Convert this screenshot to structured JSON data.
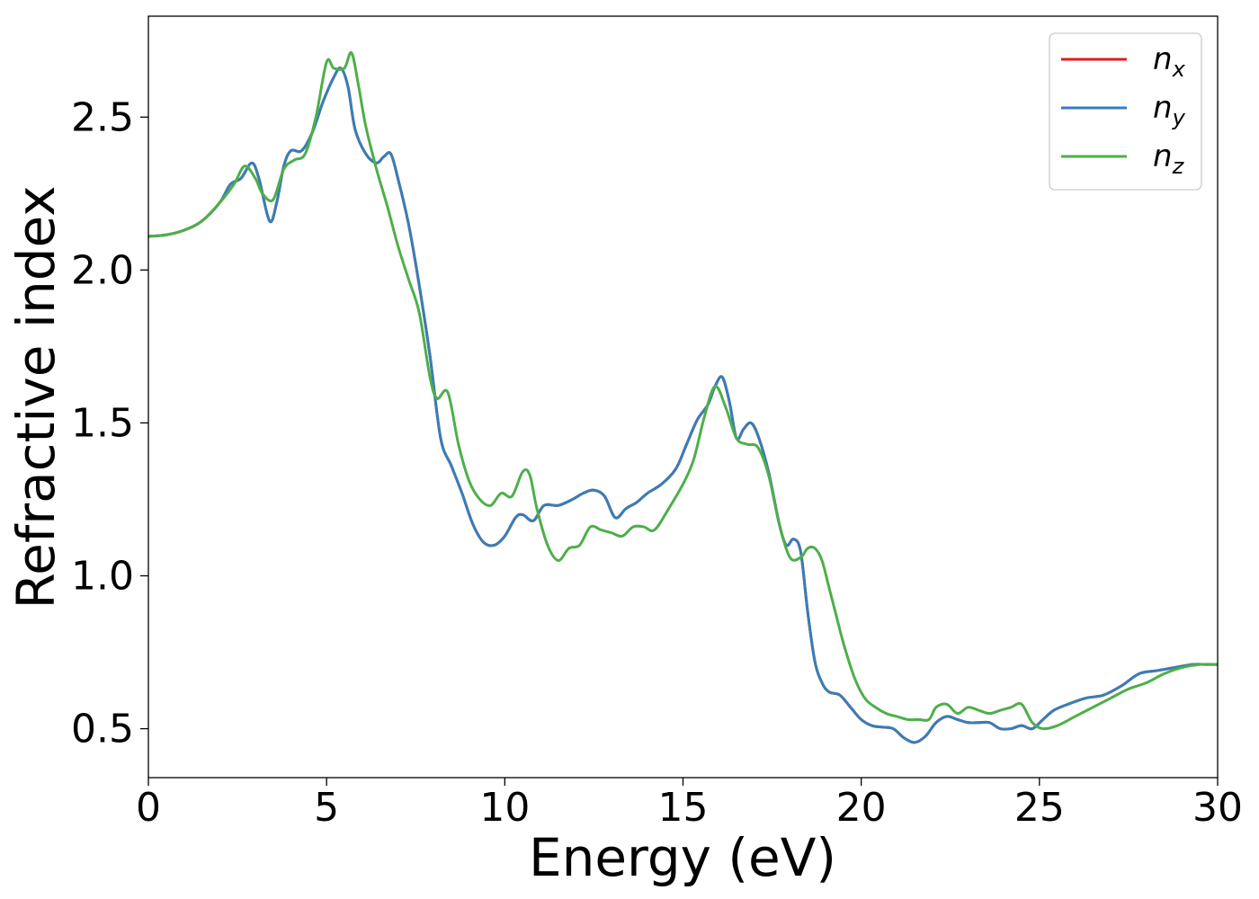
{
  "chart_data": {
    "type": "line",
    "title": "",
    "xlabel": "Energy (eV)",
    "ylabel": "Refractive index",
    "xlim": [
      0,
      30
    ],
    "ylim": [
      0.34,
      2.83
    ],
    "xticks": [
      0,
      5,
      10,
      15,
      20,
      25,
      30
    ],
    "xtick_labels": [
      "0",
      "5",
      "10",
      "15",
      "20",
      "25",
      "30"
    ],
    "yticks": [
      0.5,
      1.0,
      1.5,
      2.0,
      2.5
    ],
    "ytick_labels": [
      "0.5",
      "1.0",
      "1.5",
      "2.0",
      "2.5"
    ],
    "grid": false,
    "legend_position": "top-right",
    "series": [
      {
        "name": "n_x",
        "legend_main": "n",
        "legend_sub": "x",
        "color": "#e41a1c",
        "x": [
          0,
          0.5,
          1,
          1.5,
          2,
          2.3,
          2.6,
          2.9,
          3.1,
          3.4,
          3.6,
          3.8,
          4.0,
          4.3,
          4.6,
          4.9,
          5.2,
          5.4,
          5.6,
          5.8,
          6.1,
          6.4,
          6.6,
          6.8,
          7.0,
          7.3,
          7.6,
          7.9,
          8.2,
          8.5,
          8.8,
          9.1,
          9.4,
          9.7,
          10.0,
          10.3,
          10.5,
          10.8,
          11.1,
          11.5,
          11.9,
          12.2,
          12.5,
          12.8,
          13.1,
          13.4,
          13.7,
          14.0,
          14.4,
          14.8,
          15.1,
          15.4,
          15.7,
          15.9,
          16.1,
          16.3,
          16.5,
          16.7,
          16.9,
          17.1,
          17.4,
          17.7,
          17.9,
          18.1,
          18.3,
          18.5,
          18.7,
          18.9,
          19.1,
          19.4,
          19.7,
          20.0,
          20.3,
          20.6,
          20.9,
          21.2,
          21.5,
          21.8,
          22.1,
          22.4,
          22.7,
          23.0,
          23.3,
          23.6,
          23.9,
          24.2,
          24.5,
          24.8,
          25.1,
          25.4,
          25.8,
          26.3,
          26.8,
          27.3,
          27.8,
          28.3,
          28.8,
          29.3,
          29.7,
          30.0
        ],
        "y": [
          2.11,
          2.115,
          2.13,
          2.16,
          2.22,
          2.28,
          2.3,
          2.35,
          2.3,
          2.16,
          2.22,
          2.34,
          2.39,
          2.39,
          2.45,
          2.55,
          2.63,
          2.66,
          2.6,
          2.46,
          2.38,
          2.35,
          2.37,
          2.38,
          2.3,
          2.15,
          1.95,
          1.72,
          1.45,
          1.36,
          1.27,
          1.17,
          1.11,
          1.1,
          1.13,
          1.19,
          1.2,
          1.18,
          1.23,
          1.23,
          1.25,
          1.27,
          1.28,
          1.26,
          1.19,
          1.22,
          1.24,
          1.27,
          1.3,
          1.35,
          1.43,
          1.51,
          1.56,
          1.62,
          1.65,
          1.57,
          1.45,
          1.48,
          1.5,
          1.46,
          1.34,
          1.17,
          1.1,
          1.12,
          1.08,
          0.88,
          0.72,
          0.65,
          0.62,
          0.61,
          0.57,
          0.53,
          0.51,
          0.505,
          0.5,
          0.47,
          0.455,
          0.475,
          0.52,
          0.54,
          0.53,
          0.52,
          0.52,
          0.52,
          0.5,
          0.5,
          0.51,
          0.5,
          0.53,
          0.56,
          0.58,
          0.6,
          0.61,
          0.64,
          0.68,
          0.69,
          0.7,
          0.71,
          0.71,
          0.71
        ]
      },
      {
        "name": "n_y",
        "legend_main": "n",
        "legend_sub": "y",
        "color": "#377eb8",
        "x": [
          0,
          0.5,
          1,
          1.5,
          2,
          2.3,
          2.6,
          2.9,
          3.1,
          3.4,
          3.6,
          3.8,
          4.0,
          4.3,
          4.6,
          4.9,
          5.2,
          5.4,
          5.6,
          5.8,
          6.1,
          6.4,
          6.6,
          6.8,
          7.0,
          7.3,
          7.6,
          7.9,
          8.2,
          8.5,
          8.8,
          9.1,
          9.4,
          9.7,
          10.0,
          10.3,
          10.5,
          10.8,
          11.1,
          11.5,
          11.9,
          12.2,
          12.5,
          12.8,
          13.1,
          13.4,
          13.7,
          14.0,
          14.4,
          14.8,
          15.1,
          15.4,
          15.7,
          15.9,
          16.1,
          16.3,
          16.5,
          16.7,
          16.9,
          17.1,
          17.4,
          17.7,
          17.9,
          18.1,
          18.3,
          18.5,
          18.7,
          18.9,
          19.1,
          19.4,
          19.7,
          20.0,
          20.3,
          20.6,
          20.9,
          21.2,
          21.5,
          21.8,
          22.1,
          22.4,
          22.7,
          23.0,
          23.3,
          23.6,
          23.9,
          24.2,
          24.5,
          24.8,
          25.1,
          25.4,
          25.8,
          26.3,
          26.8,
          27.3,
          27.8,
          28.3,
          28.8,
          29.3,
          29.7,
          30.0
        ],
        "y": [
          2.11,
          2.115,
          2.13,
          2.16,
          2.22,
          2.28,
          2.3,
          2.35,
          2.3,
          2.16,
          2.22,
          2.34,
          2.39,
          2.39,
          2.45,
          2.55,
          2.63,
          2.66,
          2.6,
          2.46,
          2.38,
          2.35,
          2.37,
          2.38,
          2.3,
          2.15,
          1.95,
          1.72,
          1.45,
          1.36,
          1.27,
          1.17,
          1.11,
          1.1,
          1.13,
          1.19,
          1.2,
          1.18,
          1.23,
          1.23,
          1.25,
          1.27,
          1.28,
          1.26,
          1.19,
          1.22,
          1.24,
          1.27,
          1.3,
          1.35,
          1.43,
          1.51,
          1.56,
          1.62,
          1.65,
          1.57,
          1.45,
          1.48,
          1.5,
          1.46,
          1.34,
          1.17,
          1.1,
          1.12,
          1.08,
          0.88,
          0.72,
          0.65,
          0.62,
          0.61,
          0.57,
          0.53,
          0.51,
          0.505,
          0.5,
          0.47,
          0.455,
          0.475,
          0.52,
          0.54,
          0.53,
          0.52,
          0.52,
          0.52,
          0.5,
          0.5,
          0.51,
          0.5,
          0.53,
          0.56,
          0.58,
          0.6,
          0.61,
          0.64,
          0.68,
          0.69,
          0.7,
          0.71,
          0.71,
          0.71
        ]
      },
      {
        "name": "n_z",
        "legend_main": "n",
        "legend_sub": "z",
        "color": "#4daf4a",
        "x": [
          0,
          0.5,
          1,
          1.5,
          2,
          2.4,
          2.7,
          3.0,
          3.2,
          3.5,
          3.8,
          4.1,
          4.4,
          4.7,
          5.0,
          5.2,
          5.5,
          5.7,
          5.9,
          6.1,
          6.4,
          6.7,
          7.0,
          7.3,
          7.6,
          7.9,
          8.1,
          8.4,
          8.7,
          9.0,
          9.3,
          9.6,
          9.9,
          10.2,
          10.5,
          10.7,
          10.9,
          11.2,
          11.5,
          11.8,
          12.1,
          12.4,
          12.7,
          13.0,
          13.3,
          13.6,
          13.9,
          14.2,
          14.6,
          15.0,
          15.3,
          15.6,
          15.9,
          16.2,
          16.5,
          16.8,
          17.1,
          17.4,
          17.7,
          18.0,
          18.3,
          18.5,
          18.7,
          18.9,
          19.1,
          19.3,
          19.5,
          19.8,
          20.1,
          20.4,
          20.7,
          21.0,
          21.3,
          21.6,
          21.9,
          22.1,
          22.4,
          22.7,
          23.0,
          23.3,
          23.6,
          23.9,
          24.2,
          24.5,
          24.8,
          25.1,
          25.5,
          26.0,
          26.5,
          27.0,
          27.5,
          28.0,
          28.5,
          29.0,
          29.5,
          30.0
        ],
        "y": [
          2.11,
          2.115,
          2.13,
          2.16,
          2.22,
          2.28,
          2.34,
          2.3,
          2.25,
          2.23,
          2.33,
          2.36,
          2.38,
          2.5,
          2.68,
          2.66,
          2.66,
          2.71,
          2.6,
          2.47,
          2.33,
          2.21,
          2.08,
          1.97,
          1.86,
          1.65,
          1.58,
          1.6,
          1.43,
          1.31,
          1.25,
          1.23,
          1.27,
          1.26,
          1.34,
          1.33,
          1.22,
          1.1,
          1.05,
          1.09,
          1.1,
          1.16,
          1.15,
          1.14,
          1.13,
          1.16,
          1.16,
          1.15,
          1.22,
          1.3,
          1.38,
          1.52,
          1.62,
          1.55,
          1.45,
          1.43,
          1.42,
          1.33,
          1.17,
          1.06,
          1.06,
          1.09,
          1.09,
          1.05,
          0.96,
          0.87,
          0.78,
          0.67,
          0.6,
          0.57,
          0.55,
          0.54,
          0.53,
          0.53,
          0.53,
          0.57,
          0.58,
          0.55,
          0.57,
          0.56,
          0.55,
          0.56,
          0.57,
          0.58,
          0.52,
          0.5,
          0.51,
          0.54,
          0.57,
          0.6,
          0.63,
          0.65,
          0.68,
          0.7,
          0.71,
          0.71
        ]
      }
    ]
  }
}
